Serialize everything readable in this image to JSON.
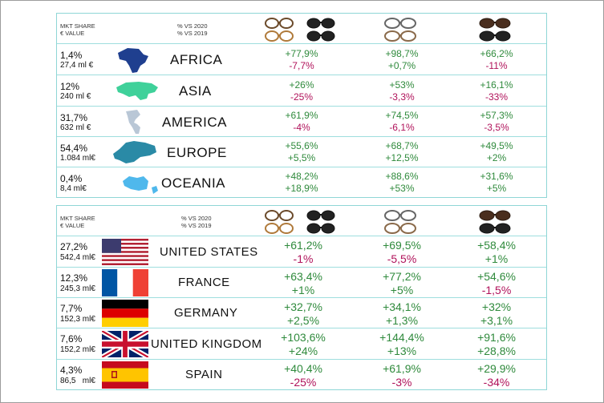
{
  "regions": {
    "header": {
      "mkt_share": "MKT SHARE",
      "value": "€ VALUE",
      "vs2020": "% VS 2020",
      "vs2019": "% VS 2019"
    },
    "rows": [
      {
        "name": "AFRICA",
        "share": "1,4%",
        "value": "27,4 ml €",
        "c1": [
          "+77,9%",
          "-7,7%"
        ],
        "c2": [
          "+98,7%",
          "+0,7%"
        ],
        "c3": [
          "+66,2%",
          "-11%"
        ],
        "map_color": "#1f3f8f"
      },
      {
        "name": "ASIA",
        "share": "12%",
        "value": "240 ml €",
        "c1": [
          "+26%",
          "-25%"
        ],
        "c2": [
          "+53%",
          "-3,3%"
        ],
        "c3": [
          "+16,1%",
          "-33%"
        ],
        "map_color": "#3fd19a"
      },
      {
        "name": "AMERICA",
        "share": "31,7%",
        "value": "632 ml €",
        "c1": [
          "+61,9%",
          "-4%"
        ],
        "c2": [
          "+74,5%",
          "-6,1%"
        ],
        "c3": [
          "+57,3%",
          "-3,5%"
        ],
        "map_color": "#b9c7d6"
      },
      {
        "name": "EUROPE",
        "share": "54,4%",
        "value": "1.084 ml€",
        "c1": [
          "+55,6%",
          "+5,5%"
        ],
        "c2": [
          "+68,7%",
          "+12,5%"
        ],
        "c3": [
          "+49,5%",
          "+2%"
        ],
        "map_color": "#2a8aa6"
      },
      {
        "name": "OCEANIA",
        "share": "0,4%",
        "value": "8,4 ml€",
        "c1": [
          "+48,2%",
          "+18,9%"
        ],
        "c2": [
          "+88,6%",
          "+53%"
        ],
        "c3": [
          "+31,6%",
          "+5%"
        ],
        "map_color": "#4fb8ec"
      }
    ]
  },
  "countries": {
    "header": {
      "mkt_share": "MKT SHARE",
      "value": "€ VALUE",
      "vs2020": "% VS 2020",
      "vs2019": "% VS 2019"
    },
    "rows": [
      {
        "name": "UNITED STATES",
        "share": "27,2%",
        "value": "542,4 ml€",
        "c1": [
          "+61,2%",
          "-1%"
        ],
        "c2": [
          "+69,5%",
          "-5,5%"
        ],
        "c3": [
          "+58,4%",
          "+1%"
        ]
      },
      {
        "name": "FRANCE",
        "share": "12,3%",
        "value": "245,3 ml€",
        "c1": [
          "+63,4%",
          "+1%"
        ],
        "c2": [
          "+77,2%",
          "+5%"
        ],
        "c3": [
          "+54,6%",
          "-1,5%"
        ]
      },
      {
        "name": "GERMANY",
        "share": "7,7%",
        "value": "152,3 ml€",
        "c1": [
          "+32,7%",
          "+2,5%"
        ],
        "c2": [
          "+34,1%",
          "+1,3%"
        ],
        "c3": [
          "+32%",
          "+3,1%"
        ]
      },
      {
        "name": "UNITED KINGDOM",
        "share": "7,6%",
        "value": "152,2 ml€",
        "c1": [
          "+103,6%",
          "+24%"
        ],
        "c2": [
          "+144,4%",
          "+13%"
        ],
        "c3": [
          "+91,6%",
          "+28,8%"
        ]
      },
      {
        "name": "SPAIN",
        "share": "4,3%",
        "value": "86,5   ml€",
        "c1": [
          "+40,4%",
          "-25%"
        ],
        "c2": [
          "+61,9%",
          "-3%"
        ],
        "c3": [
          "+29,9%",
          "-34%"
        ]
      }
    ]
  },
  "icons": {
    "column1": "four-glasses-icon",
    "column2": "clear-glasses-icon",
    "column3": "sunglasses-icon"
  }
}
